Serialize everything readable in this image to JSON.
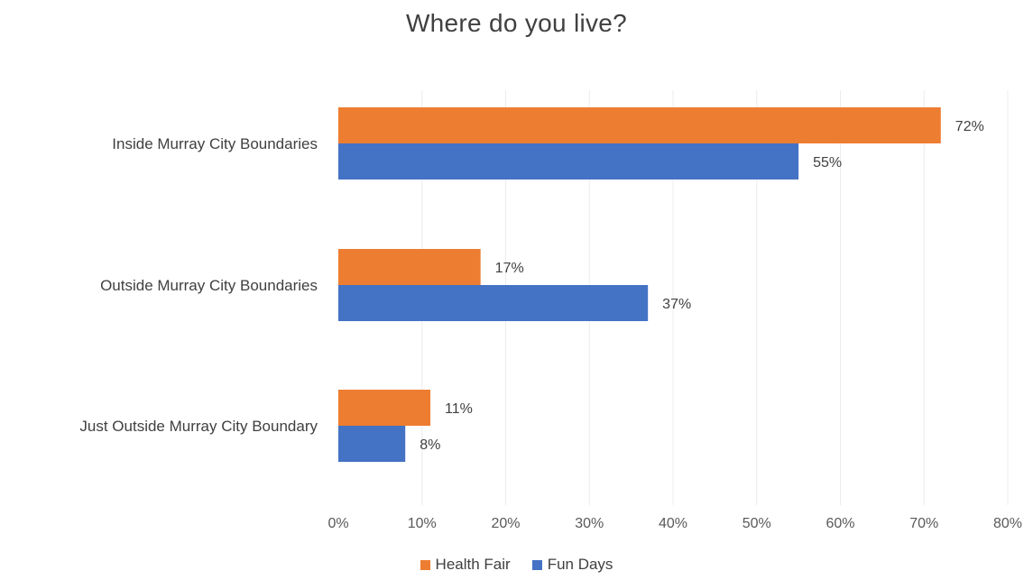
{
  "chart_data": {
    "type": "bar",
    "orientation": "horizontal",
    "title": "Where do you live?",
    "categories": [
      "Inside Murray City Boundaries",
      "Outside Murray City Boundaries",
      "Just Outside Murray City Boundary"
    ],
    "series": [
      {
        "name": "Health Fair",
        "color": "#ED7D31",
        "values": [
          72,
          17,
          11
        ],
        "labels": [
          "72%",
          "17%",
          "11%"
        ]
      },
      {
        "name": "Fun Days",
        "color": "#4472C4",
        "values": [
          55,
          37,
          8
        ],
        "labels": [
          "55%",
          "37%",
          "8%"
        ]
      }
    ],
    "xlim": [
      0,
      80
    ],
    "xticks": [
      0,
      10,
      20,
      30,
      40,
      50,
      60,
      70,
      80
    ],
    "xtick_labels": [
      "0%",
      "10%",
      "20%",
      "30%",
      "40%",
      "50%",
      "60%",
      "70%",
      "80%"
    ],
    "grid": "vertical-light",
    "legend_position": "bottom"
  }
}
